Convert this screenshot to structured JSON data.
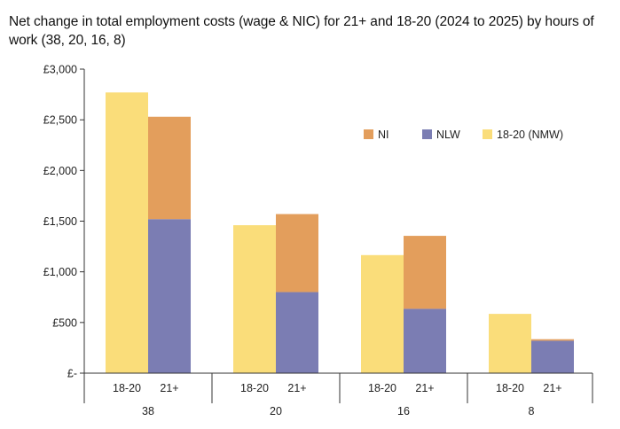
{
  "chart_data": {
    "type": "bar",
    "stacked": true,
    "title": "Net change in total employment costs (wage & NIC) for 21+ and 18-20 (2024 to 2025) by hours of work (38, 20, 16, 8)",
    "groups": [
      "38",
      "20",
      "16",
      "8"
    ],
    "subcategories": [
      "18-20",
      "21+"
    ],
    "y_ticks": [
      "£-",
      "£500",
      "£1,000",
      "£1,500",
      "£2,000",
      "£2,500",
      "£3,000"
    ],
    "ylim": [
      0,
      3000
    ],
    "grid": false,
    "legend_position": "top-right",
    "series": [
      {
        "name": "18-20 (NMW)",
        "color": "#FADD7A",
        "values": [
          [
            2770,
            0
          ],
          [
            1460,
            0
          ],
          [
            1165,
            0
          ],
          [
            585,
            0
          ]
        ]
      },
      {
        "name": "NLW",
        "color": "#7B7DB3",
        "values": [
          [
            0,
            1520
          ],
          [
            0,
            800
          ],
          [
            0,
            635
          ],
          [
            0,
            320
          ]
        ]
      },
      {
        "name": "NI",
        "color": "#E39E5C",
        "values": [
          [
            0,
            1010
          ],
          [
            0,
            770
          ],
          [
            0,
            720
          ],
          [
            0,
            15
          ]
        ]
      }
    ],
    "legend_order": [
      "NI",
      "NLW",
      "18-20 (NMW)"
    ]
  }
}
